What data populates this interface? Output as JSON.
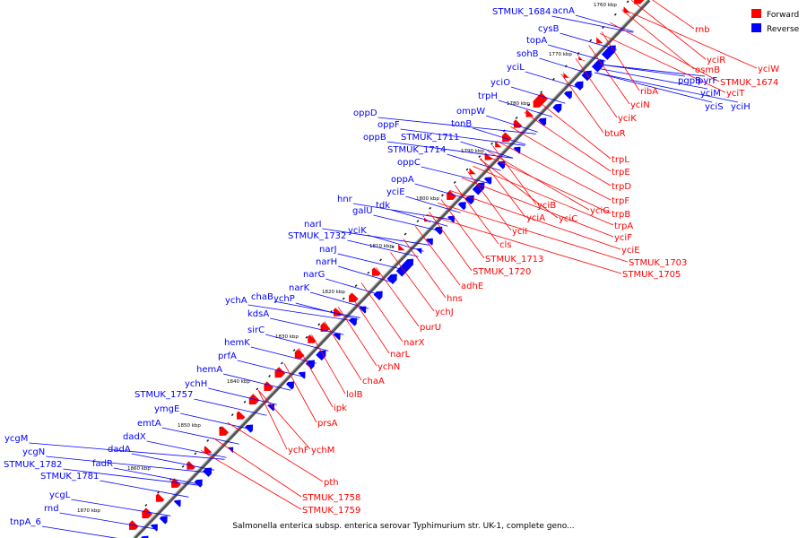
{
  "caption": "Salmonella enterica subsp. enterica serovar Typhimurium str. UK-1, complete geno...",
  "legend": [
    {
      "label": "Forward",
      "color": "#ff0000"
    },
    {
      "label": "Reverse",
      "color": "#0000ff"
    }
  ],
  "colors": {
    "forward": "#ff0000",
    "reverse": "#0000ff",
    "backbone": "#555555"
  },
  "ticks": [
    "1760 kbp",
    "1770 kbp",
    "1780 kbp",
    "1790 kbp",
    "1800 kbp",
    "1810 kbp",
    "1820 kbp",
    "1830 kbp",
    "1840 kbp",
    "1850 kbp",
    "1860 kbp",
    "1870 kbp"
  ],
  "reverse_genes": [
    "acnA",
    "STMUK_1684",
    "cysB",
    "topA",
    "sohB",
    "yciL",
    "yciO",
    "trpH",
    "ompW",
    "tonB",
    "oppD",
    "oppF",
    "oppB",
    "STMUK_1711",
    "STMUK_1714",
    "oppC",
    "oppA",
    "yciE",
    "tdk",
    "hnr",
    "galU",
    "narI",
    "STMUK_1732",
    "yciK",
    "narJ",
    "narH",
    "narG",
    "narK",
    "ychA",
    "chaB",
    "ychP",
    "kdsA",
    "sirC",
    "hemK",
    "prfA",
    "hemA",
    "ychH",
    "STMUK_1757",
    "ymgE",
    "emtA",
    "dadX",
    "dadA",
    "fadR",
    "ycgM",
    "ycgN",
    "STMUK_1782",
    "STMUK_1781",
    "ycgL",
    "rnd",
    "tnpA_6",
    "pgpB",
    "pyrF",
    "yciM",
    "yciS",
    "yciH"
  ],
  "forward_genes": [
    "rnb",
    "yciW",
    "yciR",
    "osmB",
    "STMUK_1674",
    "yciT",
    "ribA",
    "yciN",
    "yciK",
    "btuR",
    "trpL",
    "trpE",
    "trpD",
    "trpF",
    "trpB",
    "trpA",
    "yciF",
    "yciE",
    "STMUK_1703",
    "STMUK_1705",
    "yciG",
    "yciC",
    "yciB",
    "yciA",
    "yciI",
    "cls",
    "STMUK_1713",
    "STMUK_1720",
    "adhE",
    "hns",
    "ychJ",
    "purU",
    "narX",
    "narL",
    "ychN",
    "chaA",
    "lolB",
    "ipk",
    "prsA",
    "ychF",
    "ychM",
    "pth",
    "STMUK_1758",
    "STMUK_1759"
  ]
}
